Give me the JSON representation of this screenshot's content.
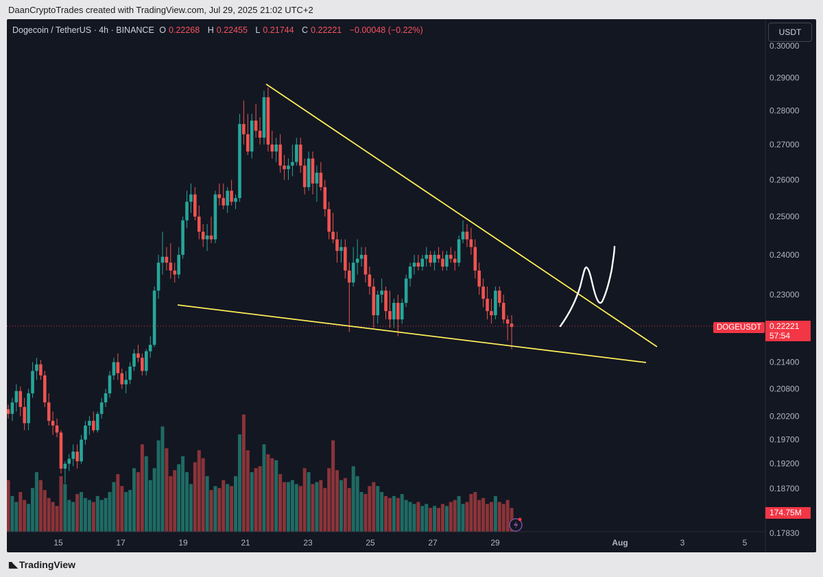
{
  "header": {
    "attribution": "DaanCryptoTrades created with TradingView.com, Jul 29, 2025 21:02 UTC+2"
  },
  "legend": {
    "symbol": "Dogecoin / TetherUS · 4h · BINANCE",
    "o_label": "O",
    "o_value": "0.22268",
    "h_label": "H",
    "h_value": "0.22455",
    "l_label": "L",
    "l_value": "0.21744",
    "c_label": "C",
    "c_value": "0.22221",
    "change": "−0.00048 (−0.22%)"
  },
  "price_axis": {
    "currency": "USDT",
    "tick_labels": [
      "0.30000",
      "0.29000",
      "0.28000",
      "0.27000",
      "0.26000",
      "0.25000",
      "0.24000",
      "0.23000",
      "0.21400",
      "0.20800",
      "0.20200",
      "0.19700",
      "0.19200",
      "0.18700",
      "0.17830"
    ],
    "current_price": "0.22221",
    "countdown": "57:54",
    "symbol_tag": "DOGEUSDT",
    "volume_value": "174.75M"
  },
  "colors": {
    "bull": "#26a69a",
    "bear": "#ef5350",
    "bull_volume": "#1f6b64",
    "bear_volume": "#8a3439",
    "trendline": "#ffee58",
    "background": "#131722",
    "price_line": "#f23645"
  },
  "footer": {
    "brand": "TradingView"
  },
  "chart_data": {
    "type": "candlestick",
    "title": "Dogecoin / TetherUS · 4h · BINANCE",
    "x_tick_labels": [
      "15",
      "17",
      "19",
      "21",
      "23",
      "25",
      "27",
      "29",
      "Aug",
      "3",
      "5"
    ],
    "ylim": [
      0.175,
      0.302
    ],
    "y_scale": "log",
    "current_price": 0.22221,
    "candles": [
      [
        0.2035,
        0.2045,
        0.2015,
        0.2025
      ],
      [
        0.2025,
        0.206,
        0.201,
        0.205
      ],
      [
        0.205,
        0.209,
        0.203,
        0.2075
      ],
      [
        0.2075,
        0.2085,
        0.202,
        0.204
      ],
      [
        0.204,
        0.206,
        0.199,
        0.2005
      ],
      [
        0.2005,
        0.208,
        0.199,
        0.207
      ],
      [
        0.207,
        0.214,
        0.206,
        0.212
      ],
      [
        0.212,
        0.215,
        0.21,
        0.2135
      ],
      [
        0.2135,
        0.2145,
        0.21,
        0.211
      ],
      [
        0.211,
        0.212,
        0.204,
        0.205
      ],
      [
        0.205,
        0.207,
        0.2,
        0.201
      ],
      [
        0.201,
        0.203,
        0.198,
        0.2
      ],
      [
        0.2,
        0.2015,
        0.1975,
        0.1985
      ],
      [
        0.1985,
        0.199,
        0.19,
        0.191
      ],
      [
        0.191,
        0.1925,
        0.188,
        0.192
      ],
      [
        0.192,
        0.194,
        0.1905,
        0.193
      ],
      [
        0.193,
        0.196,
        0.1915,
        0.1945
      ],
      [
        0.1945,
        0.196,
        0.191,
        0.1925
      ],
      [
        0.1925,
        0.198,
        0.192,
        0.197
      ],
      [
        0.197,
        0.201,
        0.196,
        0.2
      ],
      [
        0.2,
        0.202,
        0.198,
        0.201
      ],
      [
        0.201,
        0.203,
        0.1985,
        0.199
      ],
      [
        0.199,
        0.203,
        0.1985,
        0.2025
      ],
      [
        0.2025,
        0.206,
        0.2015,
        0.205
      ],
      [
        0.205,
        0.208,
        0.204,
        0.207
      ],
      [
        0.207,
        0.212,
        0.206,
        0.211
      ],
      [
        0.211,
        0.215,
        0.21,
        0.214
      ],
      [
        0.214,
        0.216,
        0.21,
        0.2115
      ],
      [
        0.2115,
        0.2125,
        0.208,
        0.209
      ],
      [
        0.209,
        0.212,
        0.207,
        0.21
      ],
      [
        0.21,
        0.214,
        0.209,
        0.213
      ],
      [
        0.213,
        0.217,
        0.212,
        0.216
      ],
      [
        0.216,
        0.218,
        0.214,
        0.215
      ],
      [
        0.215,
        0.216,
        0.211,
        0.212
      ],
      [
        0.212,
        0.217,
        0.211,
        0.2165
      ],
      [
        0.2165,
        0.22,
        0.215,
        0.218
      ],
      [
        0.218,
        0.232,
        0.2175,
        0.231
      ],
      [
        0.231,
        0.24,
        0.229,
        0.238
      ],
      [
        0.238,
        0.246,
        0.235,
        0.2395
      ],
      [
        0.2395,
        0.242,
        0.236,
        0.238
      ],
      [
        0.238,
        0.243,
        0.234,
        0.236
      ],
      [
        0.236,
        0.238,
        0.233,
        0.235
      ],
      [
        0.235,
        0.242,
        0.234,
        0.24
      ],
      [
        0.24,
        0.25,
        0.239,
        0.249
      ],
      [
        0.249,
        0.257,
        0.247,
        0.254
      ],
      [
        0.254,
        0.259,
        0.251,
        0.256
      ],
      [
        0.256,
        0.258,
        0.249,
        0.25
      ],
      [
        0.25,
        0.253,
        0.244,
        0.246
      ],
      [
        0.246,
        0.248,
        0.242,
        0.244
      ],
      [
        0.244,
        0.248,
        0.241,
        0.245
      ],
      [
        0.245,
        0.25,
        0.243,
        0.244
      ],
      [
        0.244,
        0.257,
        0.243,
        0.256
      ],
      [
        0.256,
        0.259,
        0.253,
        0.255
      ],
      [
        0.255,
        0.259,
        0.252,
        0.253
      ],
      [
        0.253,
        0.258,
        0.251,
        0.257
      ],
      [
        0.257,
        0.26,
        0.253,
        0.254
      ],
      [
        0.254,
        0.256,
        0.252,
        0.255
      ],
      [
        0.255,
        0.279,
        0.254,
        0.276
      ],
      [
        0.276,
        0.283,
        0.27,
        0.273
      ],
      [
        0.273,
        0.279,
        0.267,
        0.268
      ],
      [
        0.268,
        0.279,
        0.266,
        0.277
      ],
      [
        0.277,
        0.282,
        0.272,
        0.274
      ],
      [
        0.274,
        0.278,
        0.27,
        0.272
      ],
      [
        0.272,
        0.286,
        0.27,
        0.284
      ],
      [
        0.284,
        0.287,
        0.268,
        0.27
      ],
      [
        0.27,
        0.274,
        0.266,
        0.268
      ],
      [
        0.268,
        0.272,
        0.265,
        0.27
      ],
      [
        0.27,
        0.273,
        0.262,
        0.264
      ],
      [
        0.264,
        0.267,
        0.26,
        0.263
      ],
      [
        0.263,
        0.266,
        0.26,
        0.264
      ],
      [
        0.264,
        0.27,
        0.261,
        0.265
      ],
      [
        0.265,
        0.272,
        0.264,
        0.27
      ],
      [
        0.27,
        0.272,
        0.262,
        0.264
      ],
      [
        0.264,
        0.266,
        0.256,
        0.258
      ],
      [
        0.258,
        0.268,
        0.257,
        0.266
      ],
      [
        0.266,
        0.268,
        0.256,
        0.259
      ],
      [
        0.259,
        0.264,
        0.254,
        0.262
      ],
      [
        0.262,
        0.265,
        0.257,
        0.258
      ],
      [
        0.258,
        0.26,
        0.25,
        0.252
      ],
      [
        0.252,
        0.254,
        0.244,
        0.246
      ],
      [
        0.246,
        0.251,
        0.243,
        0.244
      ],
      [
        0.244,
        0.246,
        0.238,
        0.241
      ],
      [
        0.241,
        0.244,
        0.238,
        0.242
      ],
      [
        0.242,
        0.244,
        0.234,
        0.236
      ],
      [
        0.236,
        0.238,
        0.221,
        0.233
      ],
      [
        0.233,
        0.242,
        0.232,
        0.238
      ],
      [
        0.238,
        0.244,
        0.235,
        0.239
      ],
      [
        0.239,
        0.242,
        0.237,
        0.24
      ],
      [
        0.24,
        0.242,
        0.233,
        0.235
      ],
      [
        0.235,
        0.237,
        0.23,
        0.232
      ],
      [
        0.232,
        0.234,
        0.222,
        0.225
      ],
      [
        0.225,
        0.231,
        0.223,
        0.23
      ],
      [
        0.23,
        0.234,
        0.228,
        0.231
      ],
      [
        0.231,
        0.232,
        0.224,
        0.226
      ],
      [
        0.226,
        0.231,
        0.222,
        0.224
      ],
      [
        0.224,
        0.229,
        0.222,
        0.228
      ],
      [
        0.228,
        0.23,
        0.22,
        0.224
      ],
      [
        0.224,
        0.229,
        0.223,
        0.228
      ],
      [
        0.228,
        0.235,
        0.227,
        0.234
      ],
      [
        0.234,
        0.238,
        0.232,
        0.237
      ],
      [
        0.237,
        0.24,
        0.235,
        0.238
      ],
      [
        0.238,
        0.24,
        0.236,
        0.237
      ],
      [
        0.237,
        0.24,
        0.236,
        0.239
      ],
      [
        0.239,
        0.242,
        0.237,
        0.24
      ],
      [
        0.24,
        0.241,
        0.237,
        0.238
      ],
      [
        0.238,
        0.241,
        0.236,
        0.24
      ],
      [
        0.24,
        0.242,
        0.238,
        0.239
      ],
      [
        0.239,
        0.241,
        0.236,
        0.237
      ],
      [
        0.237,
        0.241,
        0.236,
        0.24
      ],
      [
        0.24,
        0.242,
        0.238,
        0.239
      ],
      [
        0.239,
        0.241,
        0.236,
        0.238
      ],
      [
        0.238,
        0.245,
        0.237,
        0.244
      ],
      [
        0.244,
        0.249,
        0.243,
        0.246
      ],
      [
        0.246,
        0.248,
        0.242,
        0.244
      ],
      [
        0.244,
        0.247,
        0.24,
        0.242
      ],
      [
        0.242,
        0.244,
        0.234,
        0.236
      ],
      [
        0.236,
        0.238,
        0.23,
        0.232
      ],
      [
        0.232,
        0.234,
        0.227,
        0.229
      ],
      [
        0.229,
        0.232,
        0.224,
        0.226
      ],
      [
        0.226,
        0.229,
        0.223,
        0.225
      ],
      [
        0.225,
        0.232,
        0.224,
        0.231
      ],
      [
        0.231,
        0.232,
        0.227,
        0.228
      ],
      [
        0.228,
        0.23,
        0.223,
        0.224
      ],
      [
        0.224,
        0.225,
        0.219,
        0.223
      ],
      [
        0.223,
        0.225,
        0.217,
        0.2222
      ]
    ],
    "volume": [
      2.6,
      1.8,
      1.5,
      2.0,
      1.6,
      1.4,
      2.2,
      3.0,
      2.6,
      2.1,
      1.7,
      1.5,
      1.3,
      2.8,
      2.4,
      1.6,
      1.5,
      1.9,
      2.0,
      1.7,
      1.6,
      1.5,
      1.8,
      1.6,
      1.7,
      2.0,
      2.5,
      2.9,
      2.3,
      2.0,
      2.1,
      3.2,
      3.0,
      4.4,
      3.8,
      2.6,
      3.2,
      4.6,
      5.3,
      4.2,
      2.8,
      3.1,
      3.4,
      3.8,
      3.0,
      2.4,
      3.5,
      4.1,
      3.7,
      2.8,
      2.1,
      2.3,
      2.2,
      2.6,
      2.4,
      2.3,
      2.8,
      4.9,
      5.9,
      4.1,
      3.0,
      3.2,
      3.3,
      4.4,
      3.9,
      3.7,
      3.6,
      2.9,
      2.5,
      2.5,
      2.6,
      2.4,
      2.3,
      3.2,
      3.0,
      2.4,
      2.5,
      2.6,
      2.2,
      3.2,
      4.6,
      3.1,
      2.6,
      2.7,
      2.2,
      3.3,
      2.8,
      2.0,
      1.9,
      2.3,
      2.5,
      2.3,
      2.0,
      1.8,
      1.7,
      1.8,
      1.7,
      1.9,
      1.6,
      1.5,
      1.4,
      1.5,
      1.3,
      1.4,
      1.2,
      1.3,
      1.2,
      1.4,
      1.3,
      1.5,
      1.6,
      1.8,
      1.4,
      1.5,
      1.9,
      2.0,
      1.6,
      1.7,
      1.4,
      1.5,
      1.8,
      1.5,
      1.4,
      1.6,
      1.2
    ],
    "volume_ylim": [
      0,
      11
    ],
    "trendlines": [
      {
        "from": [
          "Jul 21 18:00",
          0.288
        ],
        "to": [
          "Aug 3 04:00",
          0.2165
        ]
      },
      {
        "from": [
          "Jul 18 20:00",
          0.2275
        ],
        "to": [
          "Aug 3 00:00",
          0.2132
        ]
      }
    ]
  }
}
